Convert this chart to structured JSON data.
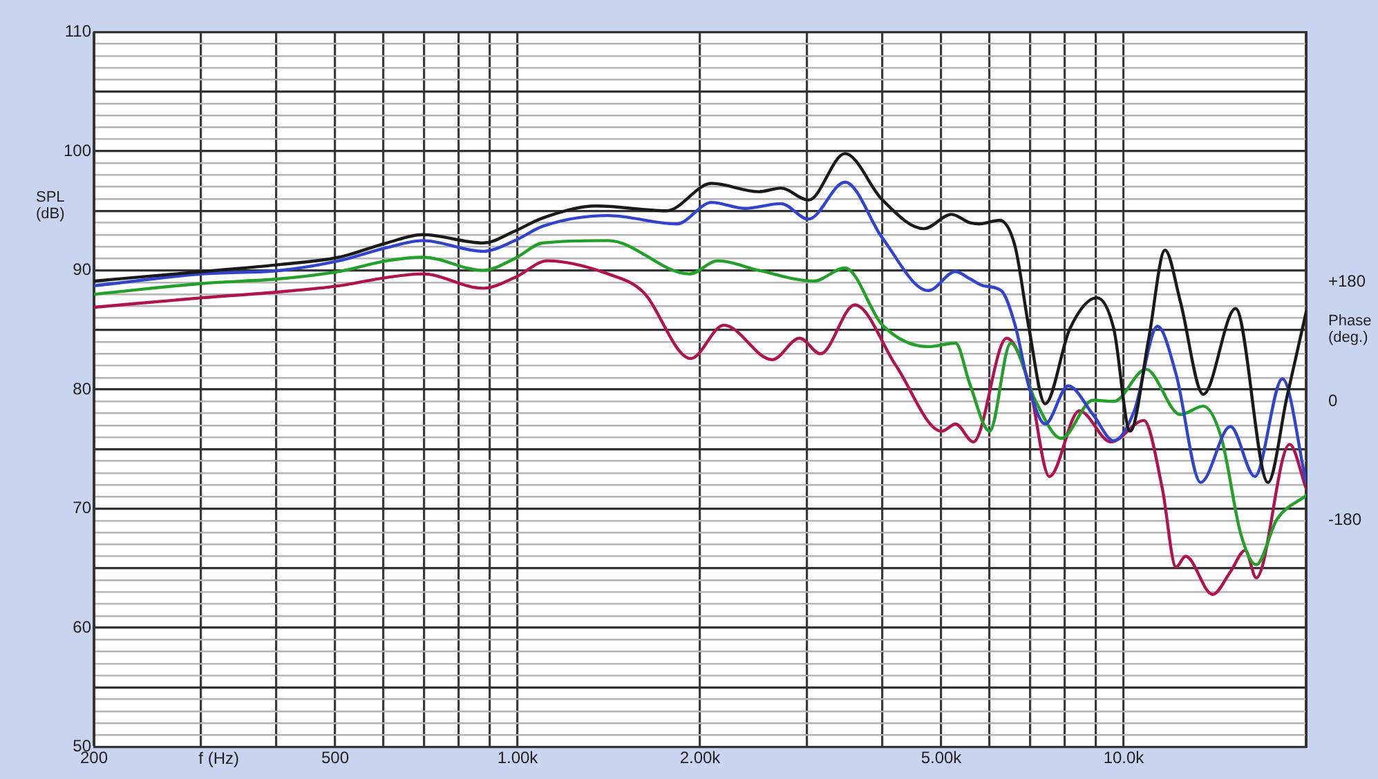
{
  "chart_data": {
    "type": "line",
    "xlabel": "f (Hz)",
    "ylabel": "SPL (dB)",
    "y2label": "Phase (deg.)",
    "log": "x",
    "grid": true,
    "legend": false,
    "marker": "none",
    "line_style": "solid",
    "xlim": [
      200,
      20000
    ],
    "xticks": [
      200,
      {
        "value": 300,
        "label": null
      },
      {
        "value": 400,
        "label": null
      },
      500,
      {
        "value": 600,
        "label": null
      },
      {
        "value": 700,
        "label": null
      },
      {
        "value": 800,
        "label": null
      },
      {
        "value": 900,
        "label": null
      },
      {
        "value": 1000,
        "label": "1.00k"
      },
      {
        "value": 2000,
        "label": "2.00k"
      },
      {
        "value": 3000,
        "label": null
      },
      {
        "value": 4000,
        "label": null
      },
      {
        "value": 5000,
        "label": "5.00k"
      },
      {
        "value": 6000,
        "label": null
      },
      {
        "value": 7000,
        "label": null
      },
      {
        "value": 8000,
        "label": null
      },
      {
        "value": 9000,
        "label": null
      },
      {
        "value": 10000,
        "label": "10.0k"
      },
      {
        "value": 20000,
        "label": null
      }
    ],
    "ylim": [
      50,
      110
    ],
    "yticks": [
      50,
      {
        "value": 51,
        "label": null
      },
      {
        "value": 52,
        "label": null
      },
      {
        "value": 53,
        "label": null
      },
      {
        "value": 54,
        "label": null
      },
      {
        "value": 55,
        "label": null
      },
      {
        "value": 56,
        "label": null
      },
      {
        "value": 57,
        "label": null
      },
      {
        "value": 58,
        "label": null
      },
      {
        "value": 59,
        "label": null
      },
      60,
      {
        "value": 61,
        "label": null
      },
      {
        "value": 62,
        "label": null
      },
      {
        "value": 63,
        "label": null
      },
      {
        "value": 64,
        "label": null
      },
      {
        "value": 65,
        "label": null
      },
      {
        "value": 66,
        "label": null
      },
      {
        "value": 67,
        "label": null
      },
      {
        "value": 68,
        "label": null
      },
      {
        "value": 69,
        "label": null
      },
      70,
      {
        "value": 71,
        "label": null
      },
      {
        "value": 72,
        "label": null
      },
      {
        "value": 73,
        "label": null
      },
      {
        "value": 74,
        "label": null
      },
      {
        "value": 75,
        "label": null
      },
      {
        "value": 76,
        "label": null
      },
      {
        "value": 77,
        "label": null
      },
      {
        "value": 78,
        "label": null
      },
      {
        "value": 79,
        "label": null
      },
      80,
      {
        "value": 81,
        "label": null
      },
      {
        "value": 82,
        "label": null
      },
      {
        "value": 83,
        "label": null
      },
      {
        "value": 84,
        "label": null
      },
      {
        "value": 85,
        "label": null
      },
      {
        "value": 86,
        "label": null
      },
      {
        "value": 87,
        "label": null
      },
      {
        "value": 88,
        "label": null
      },
      {
        "value": 89,
        "label": null
      },
      90,
      {
        "value": 91,
        "label": null
      },
      {
        "value": 92,
        "label": null
      },
      {
        "value": 93,
        "label": null
      },
      {
        "value": 94,
        "label": null
      },
      {
        "value": 95,
        "label": null
      },
      {
        "value": 96,
        "label": null
      },
      {
        "value": 97,
        "label": null
      },
      {
        "value": 98,
        "label": null
      },
      {
        "value": 99,
        "label": null
      },
      100,
      {
        "value": 101,
        "label": null
      },
      {
        "value": 102,
        "label": null
      },
      {
        "value": 103,
        "label": null
      },
      {
        "value": 104,
        "label": null
      },
      {
        "value": 105,
        "label": null
      },
      {
        "value": 106,
        "label": null
      },
      {
        "value": 107,
        "label": null
      },
      {
        "value": 108,
        "label": null
      },
      {
        "value": 109,
        "label": null
      },
      110
    ],
    "y2lim": [
      -522,
      558
    ],
    "y2ticks": [
      {
        "value": 180,
        "label": "+180"
      },
      0,
      {
        "value": -180,
        "label": "-180"
      }
    ],
    "series": [
      {
        "color": "#1a1a1a",
        "x": [
          200,
          302,
          407,
          507,
          608,
          697,
          877,
          990,
          1100,
          1350,
          1760,
          2090,
          2500,
          2720,
          3020,
          3470,
          4000,
          4680,
          5200,
          5570,
          5770,
          6240,
          6620,
          6980,
          7420,
          8150,
          9030,
          9630,
          10250,
          11000,
          11700,
          12400,
          13530,
          15300,
          17300,
          18600,
          20000
        ],
        "values": [
          89.1,
          89.9,
          90.5,
          91.1,
          92.3,
          93.0,
          92.3,
          93.3,
          94.4,
          95.4,
          95.0,
          97.3,
          96.6,
          96.9,
          95.9,
          99.8,
          95.9,
          93.5,
          94.7,
          94.0,
          93.9,
          94.2,
          92.0,
          85.1,
          78.8,
          85.1,
          87.7,
          85.1,
          76.5,
          84.3,
          91.7,
          87.4,
          79.6,
          86.8,
          72.2,
          79.4,
          86.5
        ]
      },
      {
        "color": "#3344cc",
        "x": [
          200,
          302,
          407,
          507,
          608,
          697,
          877,
          990,
          1100,
          1410,
          1830,
          2090,
          2370,
          2720,
          3020,
          3470,
          4000,
          4760,
          5280,
          5570,
          5870,
          6280,
          6620,
          6980,
          7420,
          8100,
          8900,
          9630,
          10410,
          11370,
          12200,
          13400,
          15000,
          16460,
          18280,
          20000
        ],
        "values": [
          88.7,
          89.7,
          90.0,
          90.8,
          91.9,
          92.5,
          91.6,
          92.5,
          93.7,
          94.6,
          93.9,
          95.7,
          95.2,
          95.6,
          94.3,
          97.4,
          92.7,
          88.3,
          89.9,
          89.3,
          88.7,
          88.3,
          85.4,
          80.2,
          77.1,
          80.3,
          77.9,
          75.7,
          78.2,
          85.3,
          81.3,
          72.2,
          76.9,
          72.7,
          80.9,
          72.2
        ]
      },
      {
        "color": "#22a02a",
        "x": [
          200,
          302,
          407,
          507,
          608,
          697,
          877,
          990,
          1100,
          1410,
          1920,
          2140,
          2500,
          3080,
          3470,
          4000,
          4760,
          5280,
          5570,
          6010,
          6510,
          7160,
          7890,
          8900,
          9630,
          10880,
          12400,
          13530,
          14500,
          15600,
          16550,
          17900,
          20000
        ],
        "values": [
          88.0,
          88.9,
          89.3,
          89.9,
          90.8,
          91.1,
          90.0,
          91.0,
          92.3,
          92.5,
          89.7,
          90.8,
          90.0,
          89.1,
          90.2,
          85.4,
          83.6,
          83.9,
          80.5,
          76.5,
          83.9,
          79.0,
          75.9,
          79.1,
          79.0,
          81.7,
          77.9,
          78.6,
          75.9,
          67.9,
          65.3,
          69.1,
          71.1
        ]
      },
      {
        "color": "#b0144f",
        "x": [
          200,
          302,
          407,
          507,
          608,
          697,
          877,
          990,
          1120,
          1410,
          1610,
          1930,
          2190,
          2630,
          2920,
          3160,
          3600,
          4210,
          5010,
          5280,
          5650,
          6410,
          6980,
          7540,
          8450,
          9530,
          10800,
          11580,
          12200,
          12650,
          14020,
          15000,
          15870,
          16550,
          18780,
          20000
        ],
        "values": [
          86.9,
          87.7,
          88.2,
          88.7,
          89.4,
          89.7,
          88.5,
          89.4,
          90.8,
          89.7,
          88.2,
          82.6,
          85.4,
          82.5,
          84.3,
          83.0,
          87.1,
          82.0,
          76.5,
          77.1,
          75.6,
          84.3,
          80.5,
          72.7,
          78.2,
          75.6,
          77.4,
          71.7,
          65.1,
          66.0,
          62.8,
          64.7,
          66.5,
          64.2,
          75.4,
          71.7
        ]
      }
    ]
  }
}
